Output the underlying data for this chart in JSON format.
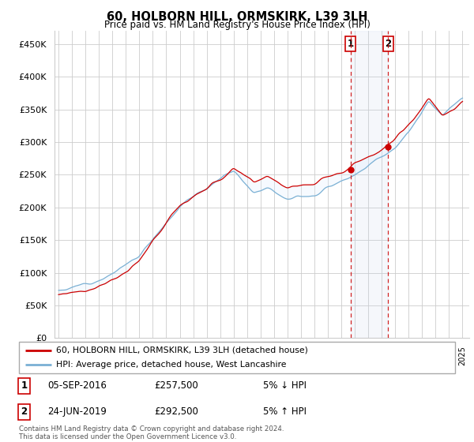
{
  "title": "60, HOLBORN HILL, ORMSKIRK, L39 3LH",
  "subtitle": "Price paid vs. HM Land Registry's House Price Index (HPI)",
  "ylabel_ticks": [
    "£0",
    "£50K",
    "£100K",
    "£150K",
    "£200K",
    "£250K",
    "£300K",
    "£350K",
    "£400K",
    "£450K"
  ],
  "ytick_values": [
    0,
    50000,
    100000,
    150000,
    200000,
    250000,
    300000,
    350000,
    400000,
    450000
  ],
  "ylim": [
    0,
    470000
  ],
  "xlim_left": 1994.7,
  "xlim_right": 2025.5,
  "sale1": {
    "date_num": 2016.68,
    "price": 257500,
    "label": "1",
    "pct": "5%",
    "dir": "↓",
    "date_str": "05-SEP-2016"
  },
  "sale2": {
    "date_num": 2019.48,
    "price": 292500,
    "label": "2",
    "pct": "5%",
    "dir": "↑",
    "date_str": "24-JUN-2019"
  },
  "legend_line1": "60, HOLBORN HILL, ORMSKIRK, L39 3LH (detached house)",
  "legend_line2": "HPI: Average price, detached house, West Lancashire",
  "footer1": "Contains HM Land Registry data © Crown copyright and database right 2024.",
  "footer2": "This data is licensed under the Open Government Licence v3.0.",
  "line_color_red": "#cc0000",
  "line_color_blue": "#7ab0d4",
  "shaded_color": "#ddeeff",
  "dashed_line_color": "#cc0000",
  "background_color": "#ffffff",
  "grid_color": "#cccccc",
  "annotation_box_color": "#cc0000",
  "noise_seed": 12,
  "noise_seed2": 77
}
